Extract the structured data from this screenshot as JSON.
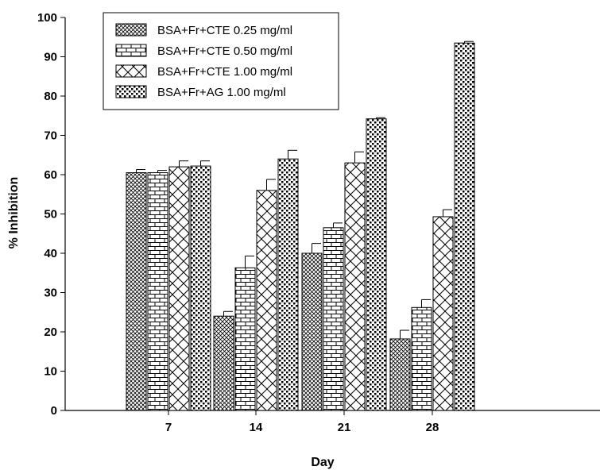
{
  "chart_data": {
    "type": "bar",
    "xlabel": "Day",
    "ylabel": "% Inhibition",
    "categories": [
      "7",
      "14",
      "21",
      "28"
    ],
    "ylim": [
      0,
      100
    ],
    "yticks": [
      0,
      10,
      20,
      30,
      40,
      50,
      60,
      70,
      80,
      90,
      100
    ],
    "legend_position": "top-left",
    "grid": false,
    "series": [
      {
        "name": "BSA+Fr+CTE 0.25 mg/ml",
        "pattern": "crosshatch",
        "values": [
          60.5,
          24.0,
          40.0,
          18.2
        ],
        "errors": [
          0.8,
          1.2,
          2.5,
          2.2
        ]
      },
      {
        "name": "BSA+Fr+CTE 0.50 mg/ml",
        "pattern": "brick",
        "values": [
          60.5,
          36.3,
          46.5,
          26.2
        ],
        "errors": [
          0.6,
          3.0,
          1.2,
          2.0
        ]
      },
      {
        "name": "BSA+Fr+CTE 1.00 mg/ml",
        "pattern": "diagonal-cross",
        "values": [
          62.0,
          56.0,
          63.0,
          49.3
        ],
        "errors": [
          1.5,
          2.8,
          2.8,
          1.8
        ]
      },
      {
        "name": "BSA+Fr+AG 1.00 mg/ml",
        "pattern": "dots",
        "values": [
          62.2,
          64.0,
          74.2,
          93.5
        ],
        "errors": [
          1.3,
          2.2,
          0.3,
          0.4
        ]
      }
    ]
  }
}
